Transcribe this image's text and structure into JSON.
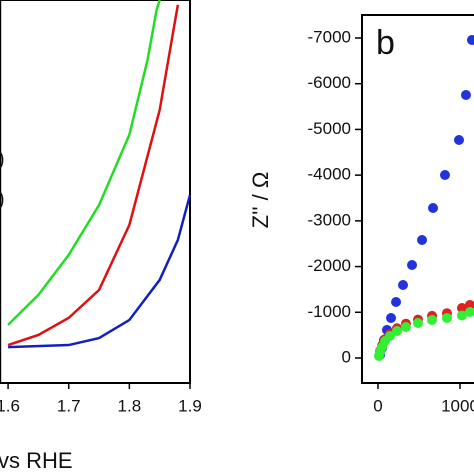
{
  "chart_data": [
    {
      "type": "line",
      "xlabel": "vs RHE",
      "annotations": [
        ")",
        ")"
      ],
      "xlim": [
        1.587,
        1.9
      ],
      "ylim": [
        -10,
        100
      ],
      "xticks": [
        1.6,
        1.7,
        1.8,
        1.9
      ],
      "series": [
        {
          "color": "#22dd22",
          "x": [
            1.6,
            1.65,
            1.7,
            1.75,
            1.8,
            1.83,
            1.845,
            1.85
          ],
          "values": [
            6.7,
            15.3,
            26.8,
            41.1,
            61.3,
            82.8,
            97.2,
            100
          ]
        },
        {
          "color": "#dd1111",
          "x": [
            1.6,
            1.65,
            1.7,
            1.75,
            1.8,
            1.85,
            1.87,
            1.88
          ],
          "values": [
            0.9,
            3.8,
            8.7,
            16.7,
            35.4,
            68.4,
            88.6,
            98.6
          ]
        },
        {
          "color": "#1122bb",
          "x": [
            1.6,
            1.7,
            1.75,
            1.8,
            1.85,
            1.88,
            1.9
          ],
          "values": [
            0.3,
            0.9,
            2.9,
            8.1,
            19.6,
            31.1,
            44
          ]
        }
      ]
    },
    {
      "type": "scatter",
      "panel_label": "b",
      "ylabel": "Z'' / Ω",
      "xlim": [
        -195,
        1500
      ],
      "ylim": [
        547,
        -7503
      ],
      "xticks": [
        0,
        1000
      ],
      "yticks": [
        0,
        -1000,
        -2000,
        -3000,
        -4000,
        -5000,
        -6000,
        -7000
      ],
      "series": [
        {
          "color": "#2233dd",
          "x": [
            24,
            49,
            73,
            110,
            159,
            220,
            305,
            415,
            537,
            671,
            817,
            988,
            1073,
            1146
          ],
          "values": [
            -66,
            -219,
            -394,
            -613,
            -875,
            -1225,
            -1597,
            -2034,
            -2581,
            -3281,
            -4003,
            -4769,
            -5753,
            -6956
          ]
        },
        {
          "color": "#dd2222",
          "x": [
            24,
            49,
            85,
            146,
            232,
            341,
            488,
            659,
            841,
            1024,
            1122
          ],
          "values": [
            -150,
            -270,
            -410,
            -530,
            -650,
            -750,
            -840,
            -920,
            -980,
            -1094,
            -1160
          ]
        },
        {
          "color": "#33ee33",
          "x": [
            12,
            24,
            49,
            85,
            146,
            232,
            341,
            488,
            659,
            841,
            1024,
            1122
          ],
          "values": [
            -44,
            -131,
            -241,
            -372,
            -481,
            -591,
            -678,
            -766,
            -831,
            -875,
            -930,
            -1006
          ]
        }
      ]
    }
  ]
}
